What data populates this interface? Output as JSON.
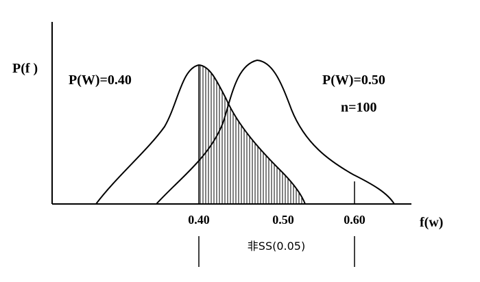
{
  "diagram": {
    "y_axis_label": "P(f )",
    "x_axis_label": "f(w)",
    "curve_left": {
      "label": "P(W)=0.40"
    },
    "curve_right": {
      "label": "P(W)=0.50",
      "sample_size": "n=100"
    },
    "ticks": [
      "0.40",
      "0.50",
      "0.60"
    ],
    "annotation": "非SS(0.05)"
  }
}
